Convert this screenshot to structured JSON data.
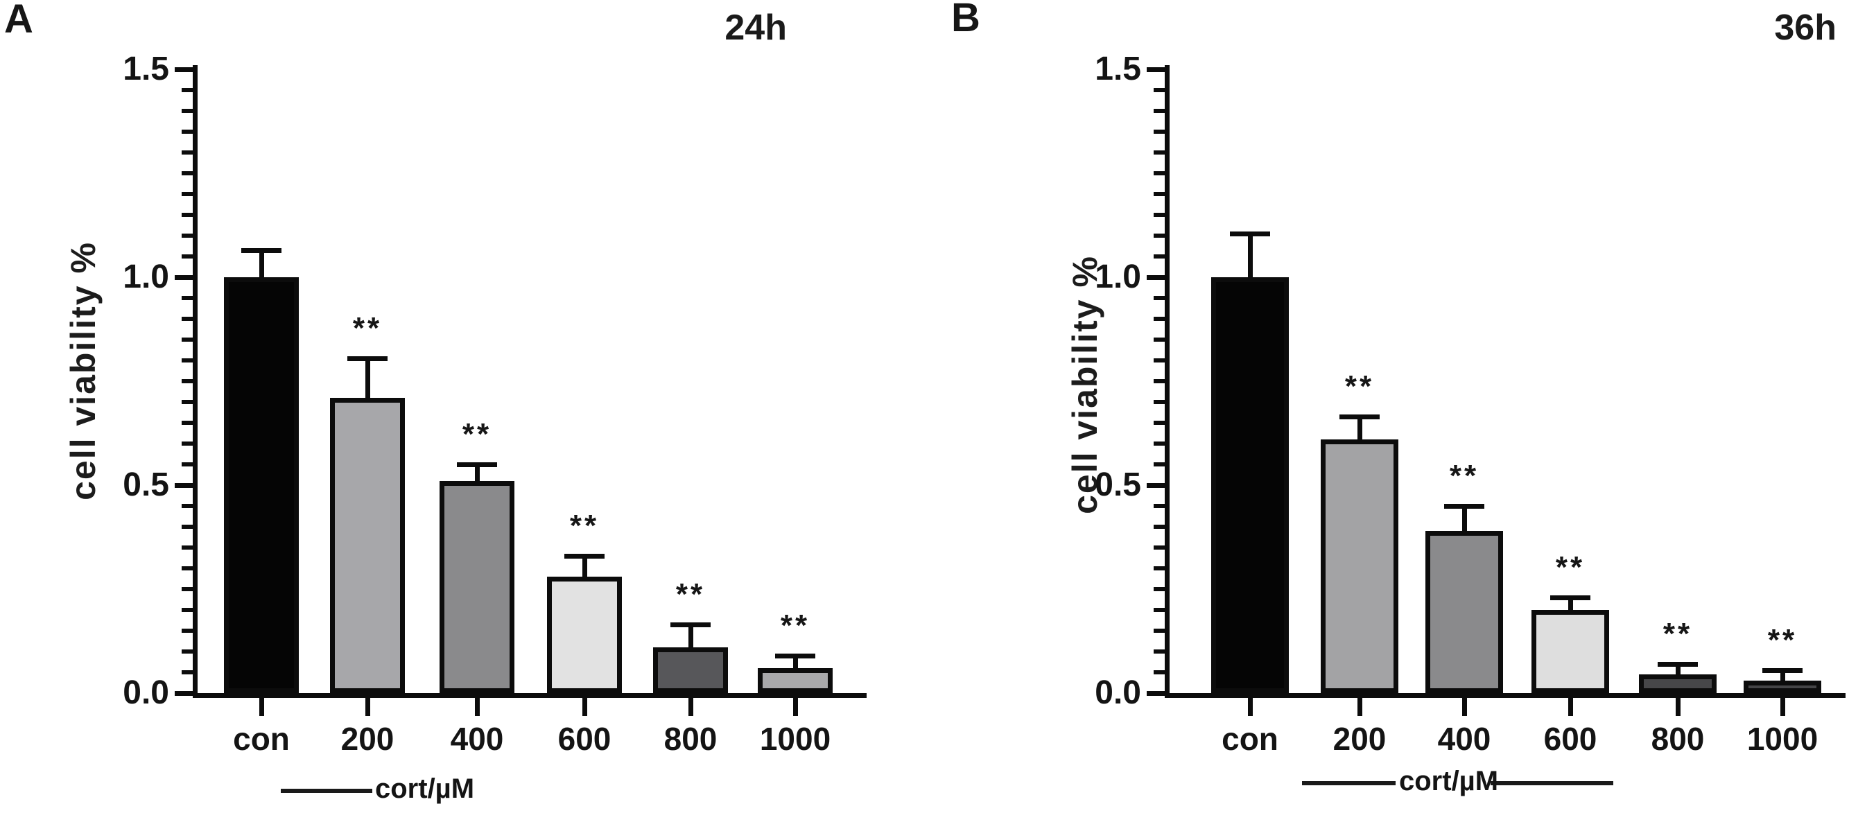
{
  "figure": {
    "background": "#ffffff",
    "ink_color": "#0c0c0c"
  },
  "chart_data": [
    {
      "type": "bar",
      "panel_letter": "A",
      "title": "24h",
      "ylabel": "cell viability %",
      "xlabel": "cort/µM",
      "categories": [
        "con",
        "200",
        "400",
        "600",
        "800",
        "1000"
      ],
      "values": [
        1.0,
        0.71,
        0.51,
        0.28,
        0.11,
        0.06
      ],
      "errors": [
        0.07,
        0.1,
        0.045,
        0.055,
        0.06,
        0.035
      ],
      "significance": [
        "",
        "**",
        "**",
        "**",
        "**",
        "**"
      ],
      "ylim": [
        0,
        1.5
      ],
      "y_major_ticks": [
        0,
        0.5,
        1.0,
        1.5
      ],
      "y_tick_labels": [
        "0.0",
        "0.5",
        "1.0",
        "1.5"
      ],
      "y_minor_tick_step": 0.05,
      "grid": false,
      "legend": null,
      "bar_colors": [
        "#050505",
        "#a7a7aa",
        "#8a8a8c",
        "#e2e2e2",
        "#57575a",
        "#a9a9ab"
      ],
      "bar_border_color": "#0c0c0c"
    },
    {
      "type": "bar",
      "panel_letter": "B",
      "title": "36h",
      "ylabel": "cell viability %",
      "xlabel": "cort/µM",
      "categories": [
        "con",
        "200",
        "400",
        "600",
        "800",
        "1000"
      ],
      "values": [
        1.0,
        0.61,
        0.39,
        0.2,
        0.045,
        0.03
      ],
      "errors": [
        0.11,
        0.06,
        0.065,
        0.035,
        0.03,
        0.03
      ],
      "significance": [
        "",
        "**",
        "**",
        "**",
        "**",
        "**"
      ],
      "ylim": [
        0,
        1.5
      ],
      "y_major_ticks": [
        0,
        0.5,
        1.0,
        1.5
      ],
      "y_tick_labels": [
        "0.0",
        "0.5",
        "1.0",
        "1.5"
      ],
      "y_minor_tick_step": 0.05,
      "grid": false,
      "legend": null,
      "bar_colors": [
        "#050505",
        "#a3a3a5",
        "#8a8a8c",
        "#dedede",
        "#474749",
        "#454547"
      ],
      "bar_border_color": "#0c0c0c"
    }
  ]
}
